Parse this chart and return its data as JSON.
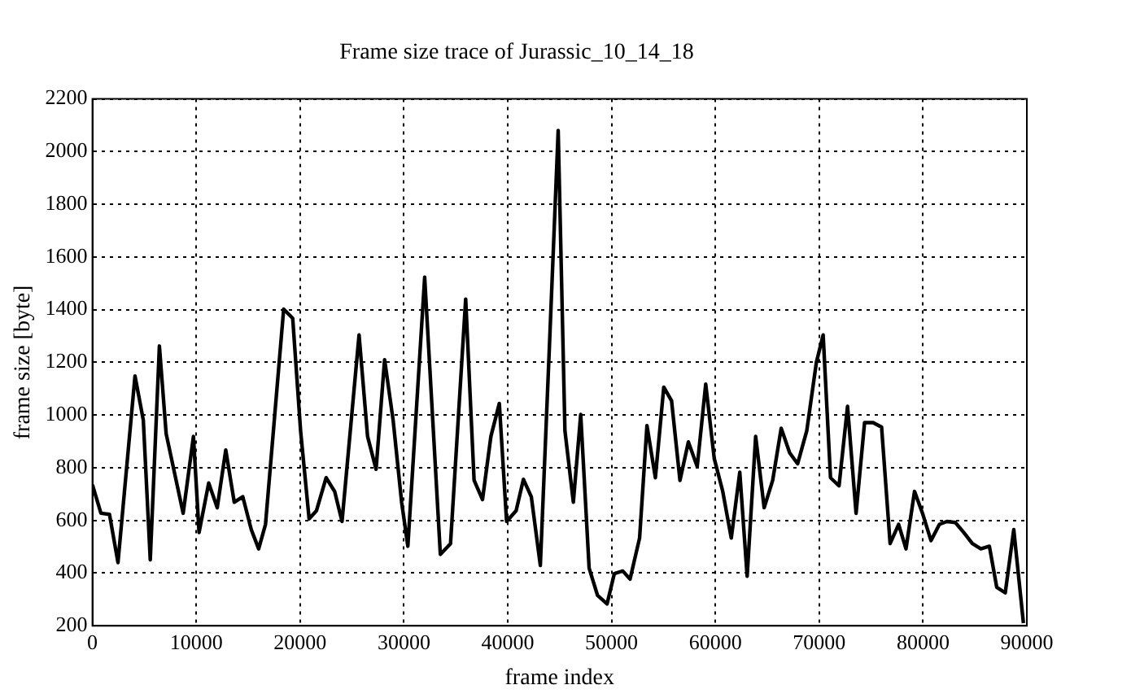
{
  "chart_data": {
    "type": "line",
    "title": "Frame size trace of Jurassic_10_14_18",
    "xlabel": "frame index",
    "ylabel": "frame size [byte]",
    "x": [
      0,
      820,
      1640,
      2460,
      4100,
      4900,
      5570,
      6450,
      7100,
      8740,
      9730,
      10270,
      11200,
      12020,
      12840,
      13660,
      14480,
      15300,
      16010,
      16670,
      18420,
      19290,
      20050,
      20870,
      21580,
      22510,
      23330,
      24040,
      25680,
      26500,
      27320,
      28140,
      28960,
      29780,
      30380,
      32000,
      33510,
      34490,
      35950,
      36760,
      37570,
      38380,
      39190,
      39890,
      40810,
      41510,
      42270,
      43140,
      44050,
      44860,
      45510,
      46320,
      47030,
      47840,
      48650,
      49570,
      50270,
      51080,
      51780,
      52700,
      53410,
      54220,
      55030,
      55780,
      56590,
      57400,
      58250,
      59070,
      59890,
      60710,
      61530,
      62350,
      63060,
      63880,
      64700,
      65520,
      66340,
      67160,
      67920,
      68800,
      69730,
      70380,
      71090,
      71910,
      72730,
      73550,
      74370,
      75190,
      76010,
      76830,
      77650,
      78360,
      79180,
      79950,
      80770,
      81580,
      82300,
      83110,
      83930,
      84750,
      85570,
      86390,
      87100,
      87920,
      88740,
      89670
    ],
    "series": [
      {
        "color": "#000000",
        "values": [
          735,
          627,
          623,
          440,
          1148,
          981,
          450,
          1262,
          929,
          627,
          919,
          554,
          742,
          648,
          867,
          669,
          690,
          565,
          492,
          585,
          1402,
          1367,
          940,
          606,
          637,
          762,
          710,
          596,
          1304,
          919,
          794,
          1210,
          981,
          669,
          502,
          1523,
          471,
          512,
          1440,
          752,
          679,
          919,
          1044,
          596,
          637,
          756,
          690,
          429,
          1294,
          2080,
          940,
          669,
          1002,
          419,
          315,
          283,
          398,
          408,
          377,
          533,
          960,
          762,
          1106,
          1054,
          752,
          898,
          804,
          1117,
          835,
          710,
          533,
          783,
          388,
          919,
          648,
          752,
          950,
          856,
          815,
          940,
          1200,
          1304,
          762,
          731,
          1033,
          627,
          971,
          971,
          954,
          512,
          585,
          492,
          710,
          627,
          523,
          585,
          596,
          592,
          554,
          512,
          492,
          502,
          346,
          325,
          565,
          210
        ]
      }
    ],
    "xlim": [
      0,
      90000
    ],
    "xticks": [
      0,
      10000,
      20000,
      30000,
      40000,
      50000,
      60000,
      70000,
      80000,
      90000
    ],
    "ylim": [
      200,
      2200
    ],
    "yticks": [
      200,
      400,
      600,
      800,
      1000,
      1200,
      1400,
      1600,
      1800,
      2000,
      2200
    ],
    "grid": true,
    "legend": false,
    "marker": "none",
    "line_style": "solid"
  }
}
